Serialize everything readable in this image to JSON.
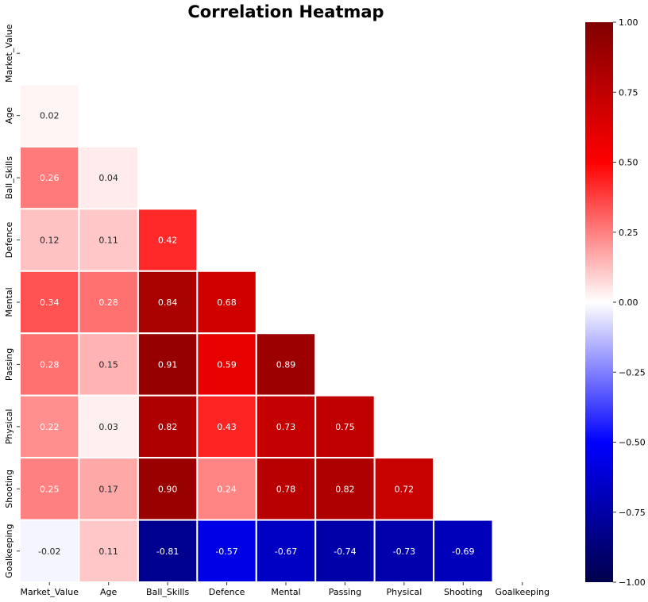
{
  "chart_data": {
    "type": "heatmap",
    "title": "Correlation Heatmap",
    "xlabel": "",
    "ylabel": "",
    "labels": [
      "Market_Value",
      "Age",
      "Ball_Skills",
      "Defence",
      "Mental",
      "Passing",
      "Physical",
      "Shooting",
      "Goalkeeping"
    ],
    "mask": "upper-triangle-and-diagonal",
    "matrix": [
      [
        null,
        null,
        null,
        null,
        null,
        null,
        null,
        null,
        null
      ],
      [
        0.02,
        null,
        null,
        null,
        null,
        null,
        null,
        null,
        null
      ],
      [
        0.26,
        0.04,
        null,
        null,
        null,
        null,
        null,
        null,
        null
      ],
      [
        0.12,
        0.11,
        0.42,
        null,
        null,
        null,
        null,
        null,
        null
      ],
      [
        0.34,
        0.28,
        0.84,
        0.68,
        null,
        null,
        null,
        null,
        null
      ],
      [
        0.28,
        0.15,
        0.91,
        0.59,
        0.89,
        null,
        null,
        null,
        null
      ],
      [
        0.22,
        0.03,
        0.82,
        0.43,
        0.73,
        0.75,
        null,
        null,
        null
      ],
      [
        0.25,
        0.17,
        0.9,
        0.24,
        0.78,
        0.82,
        0.72,
        null,
        null
      ],
      [
        -0.02,
        0.11,
        -0.81,
        -0.57,
        -0.67,
        -0.74,
        -0.73,
        -0.69,
        null
      ]
    ],
    "value_range": [
      -1.0,
      1.0
    ],
    "colormap": "seismic",
    "colorbar_ticks": [
      "1.00",
      "0.75",
      "0.50",
      "0.25",
      "0.00",
      "−0.25",
      "−0.50",
      "−0.75",
      "−1.00"
    ],
    "colorbar_tick_values": [
      1.0,
      0.75,
      0.5,
      0.25,
      0.0,
      -0.25,
      -0.5,
      -0.75,
      -1.0
    ],
    "annotation_format": "0.00"
  }
}
